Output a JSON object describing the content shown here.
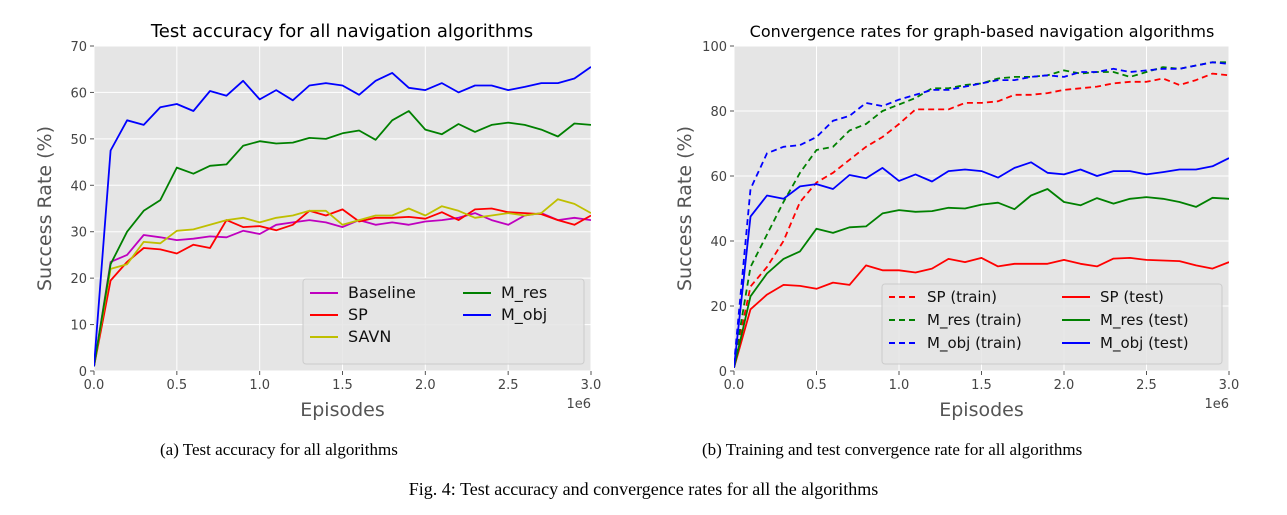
{
  "figure": {
    "subcaption_a": "(a) Test accuracy for all algorithms",
    "subcaption_b": "(b) Training and test convergence rate for all algorithms",
    "caption": "Fig. 4: Test accuracy and convergence rates for all the algorithms"
  },
  "colors": {
    "background": "#e5e5e5",
    "grid": "#ffffff",
    "Baseline": "#bf00bf",
    "SP": "#ff0000",
    "SAVN": "#bfbf00",
    "M_res": "#008000",
    "M_obj": "#0000ff"
  },
  "chart_data": [
    {
      "type": "line",
      "title": "Test accuracy for all navigation algorithms",
      "xlabel": "Episodes",
      "ylabel": "Success Rate (%)",
      "x_offset_label": "1e6",
      "xlim": [
        0,
        3.0
      ],
      "ylim": [
        0,
        70
      ],
      "xticks": [
        0.0,
        0.5,
        1.0,
        1.5,
        2.0,
        2.5,
        3.0
      ],
      "xtick_labels": [
        "0.0",
        "0.5",
        "1.0",
        "1.5",
        "2.0",
        "2.5",
        "3.0"
      ],
      "yticks": [
        0,
        10,
        20,
        30,
        40,
        50,
        60,
        70
      ],
      "ytick_labels": [
        "0",
        "10",
        "20",
        "30",
        "40",
        "50",
        "60",
        "70"
      ],
      "grid": true,
      "legend": {
        "placement": "lower-right",
        "columns": 2
      },
      "x": [
        0.0,
        0.1,
        0.2,
        0.3,
        0.4,
        0.5,
        0.6,
        0.7,
        0.8,
        0.9,
        1.0,
        1.1,
        1.2,
        1.3,
        1.4,
        1.5,
        1.6,
        1.7,
        1.8,
        1.9,
        2.0,
        2.1,
        2.2,
        2.3,
        2.4,
        2.5,
        2.6,
        2.7,
        2.8,
        2.9,
        3.0
      ],
      "series": [
        {
          "name": "Baseline",
          "color": "#bf00bf",
          "dash": "solid",
          "values": [
            1,
            23.5,
            25,
            29.3,
            28.8,
            28.2,
            28.5,
            29,
            28.8,
            30.2,
            29.5,
            31.5,
            32,
            32.5,
            32,
            31,
            32.5,
            31.5,
            32,
            31.5,
            32.2,
            32.5,
            33,
            34,
            32.5,
            31.5,
            33.5,
            34,
            32.5,
            33,
            32.5
          ]
        },
        {
          "name": "SP",
          "color": "#ff0000",
          "dash": "solid",
          "values": [
            1,
            19.5,
            23.5,
            26.5,
            26.2,
            25.3,
            27.2,
            26.5,
            32.5,
            31,
            31.2,
            30.3,
            31.5,
            34.5,
            33.5,
            34.8,
            32.2,
            33,
            33,
            33.2,
            32.8,
            34.2,
            32.5,
            34.8,
            35,
            34.2,
            34,
            33.8,
            32.5,
            31.5,
            33.5
          ]
        },
        {
          "name": "SAVN",
          "color": "#bfbf00",
          "dash": "solid",
          "values": [
            1,
            22,
            23,
            27.8,
            27.5,
            30.2,
            30.5,
            31.5,
            32.5,
            33,
            32,
            33,
            33.5,
            34.5,
            34.5,
            31.5,
            32.5,
            33.5,
            33.5,
            35,
            33.5,
            35.5,
            34.5,
            33,
            33.5,
            34,
            33.5,
            34,
            37,
            36,
            34
          ]
        },
        {
          "name": "M_res",
          "color": "#008000",
          "dash": "solid",
          "values": [
            1,
            23,
            30,
            34.5,
            36.8,
            43.8,
            42.5,
            44.2,
            44.5,
            48.5,
            49.5,
            49,
            49.2,
            50.2,
            50,
            51.2,
            51.8,
            49.8,
            54,
            56,
            52,
            51,
            53.2,
            51.5,
            53,
            53.5,
            53,
            52,
            50.5,
            53.3,
            53
          ]
        },
        {
          "name": "M_obj",
          "color": "#0000ff",
          "dash": "solid",
          "values": [
            1,
            47.5,
            54,
            53,
            56.8,
            57.5,
            56,
            60.3,
            59.3,
            62.5,
            58.5,
            60.5,
            58.3,
            61.5,
            62,
            61.5,
            59.5,
            62.5,
            64.2,
            61,
            60.5,
            62,
            60,
            61.5,
            61.5,
            60.5,
            61.2,
            62,
            62,
            63,
            65.5
          ]
        }
      ]
    },
    {
      "type": "line",
      "title": "Convergence rates for graph-based navigation algorithms",
      "xlabel": "Episodes",
      "ylabel": "Success Rate (%)",
      "x_offset_label": "1e6",
      "xlim": [
        0,
        3.0
      ],
      "ylim": [
        0,
        100
      ],
      "xticks": [
        0.0,
        0.5,
        1.0,
        1.5,
        2.0,
        2.5,
        3.0
      ],
      "xtick_labels": [
        "0.0",
        "0.5",
        "1.0",
        "1.5",
        "2.0",
        "2.5",
        "3.0"
      ],
      "yticks": [
        0,
        20,
        40,
        60,
        80,
        100
      ],
      "ytick_labels": [
        "0",
        "20",
        "40",
        "60",
        "80",
        "100"
      ],
      "grid": true,
      "legend": {
        "placement": "lower-right",
        "columns": 2
      },
      "x": [
        0.0,
        0.1,
        0.2,
        0.3,
        0.4,
        0.5,
        0.6,
        0.7,
        0.8,
        0.9,
        1.0,
        1.1,
        1.2,
        1.3,
        1.4,
        1.5,
        1.6,
        1.7,
        1.8,
        1.9,
        2.0,
        2.1,
        2.2,
        2.3,
        2.4,
        2.5,
        2.6,
        2.7,
        2.8,
        2.9,
        3.0
      ],
      "series": [
        {
          "name": "SP (train)",
          "color": "#ff0000",
          "dash": "dashed",
          "values": [
            2,
            26,
            32,
            40,
            52,
            58,
            61,
            65,
            69,
            72,
            76,
            80.5,
            80.5,
            80.5,
            82.5,
            82.5,
            83,
            85,
            85,
            85.5,
            86.5,
            87,
            87.5,
            88.5,
            89,
            89,
            90,
            88,
            89.5,
            91.5,
            91
          ]
        },
        {
          "name": "M_res (train)",
          "color": "#008000",
          "dash": "dashed",
          "values": [
            2,
            32,
            42,
            52,
            61,
            68,
            69,
            74,
            76,
            80,
            82,
            84,
            87,
            87,
            88,
            88.5,
            90,
            90.5,
            90.5,
            91,
            92.5,
            91.5,
            92,
            92,
            90.5,
            92,
            93.5,
            93,
            94,
            95,
            95
          ]
        },
        {
          "name": "M_obj (train)",
          "color": "#0000ff",
          "dash": "dashed",
          "values": [
            2,
            56,
            67,
            69,
            69.5,
            72,
            77,
            78.5,
            82.5,
            81.5,
            83.5,
            85,
            86.5,
            86.5,
            87.5,
            88.5,
            89.5,
            89.5,
            90.5,
            91,
            90.5,
            92,
            92,
            93,
            92,
            92.5,
            93,
            93,
            94,
            95,
            94.5
          ]
        },
        {
          "name": "SP (test)",
          "color": "#ff0000",
          "dash": "solid",
          "values": [
            1,
            19,
            23.5,
            26.5,
            26.2,
            25.3,
            27.2,
            26.5,
            32.5,
            31,
            31,
            30.3,
            31.5,
            34.5,
            33.5,
            34.8,
            32.2,
            33,
            33,
            33,
            34.2,
            33,
            32.2,
            34.6,
            34.8,
            34.2,
            34,
            33.8,
            32.5,
            31.5,
            33.5
          ]
        },
        {
          "name": "M_res (test)",
          "color": "#008000",
          "dash": "solid",
          "values": [
            1,
            23,
            30,
            34.5,
            36.8,
            43.8,
            42.5,
            44.2,
            44.5,
            48.5,
            49.5,
            49,
            49.2,
            50.2,
            50,
            51.2,
            51.8,
            49.8,
            54,
            56,
            52,
            51,
            53.2,
            51.5,
            53,
            53.5,
            53,
            52,
            50.5,
            53.3,
            53
          ]
        },
        {
          "name": "M_obj (test)",
          "color": "#0000ff",
          "dash": "solid",
          "values": [
            1,
            47.5,
            54,
            53,
            56.8,
            57.5,
            56,
            60.3,
            59.3,
            62.5,
            58.5,
            60.5,
            58.3,
            61.5,
            62,
            61.5,
            59.5,
            62.5,
            64.2,
            61,
            60.5,
            62,
            60,
            61.5,
            61.5,
            60.5,
            61.2,
            62,
            62,
            63,
            65.5
          ]
        }
      ]
    }
  ]
}
